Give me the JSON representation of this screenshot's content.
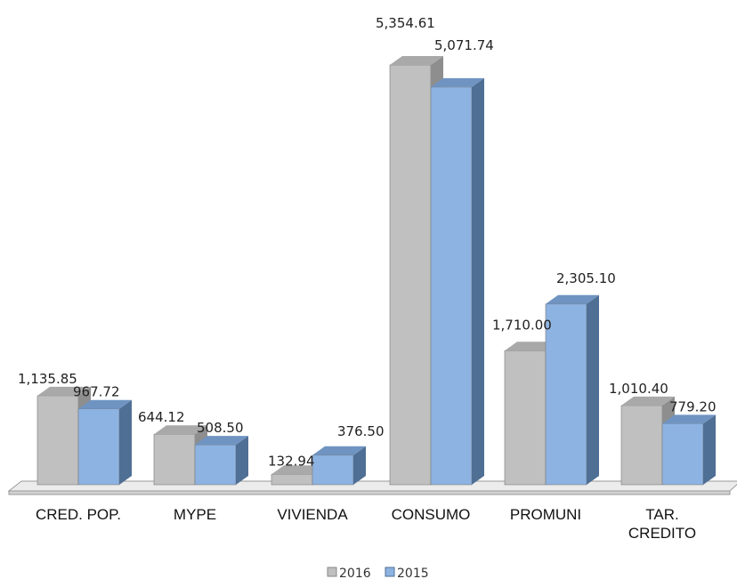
{
  "chart_data": {
    "type": "bar",
    "categories": [
      "CRED. POP.",
      "MYPE",
      "VIVIENDA",
      "CONSUMO",
      "PROMUNI",
      "TAR. CREDITO"
    ],
    "series": [
      {
        "name": "2016",
        "values": [
          1135.85,
          644.12,
          132.94,
          5354.61,
          1710.0,
          1010.4
        ],
        "labels": [
          "1,135.85",
          "644.12",
          "132.94",
          "5,354.61",
          "1,710.00",
          "1,010.40"
        ]
      },
      {
        "name": "2015",
        "values": [
          967.72,
          508.5,
          376.5,
          5071.74,
          2305.1,
          779.2
        ],
        "labels": [
          "967.72",
          "508.50",
          "376.50",
          "5,071.74",
          "2,305.10",
          "779.20"
        ]
      }
    ],
    "legend_position": "bottom",
    "three_d": true,
    "grid": false
  },
  "colors": {
    "s2016_front": "#c0c0c0",
    "s2016_side": "#8e8e8e",
    "s2016_top": "#a9a9a9",
    "s2015_front": "#8db3e2",
    "s2015_side": "#4f6f94",
    "s2015_top": "#6f94c2",
    "floor": "#ececec",
    "floor_edge": "#9a9a9a"
  }
}
